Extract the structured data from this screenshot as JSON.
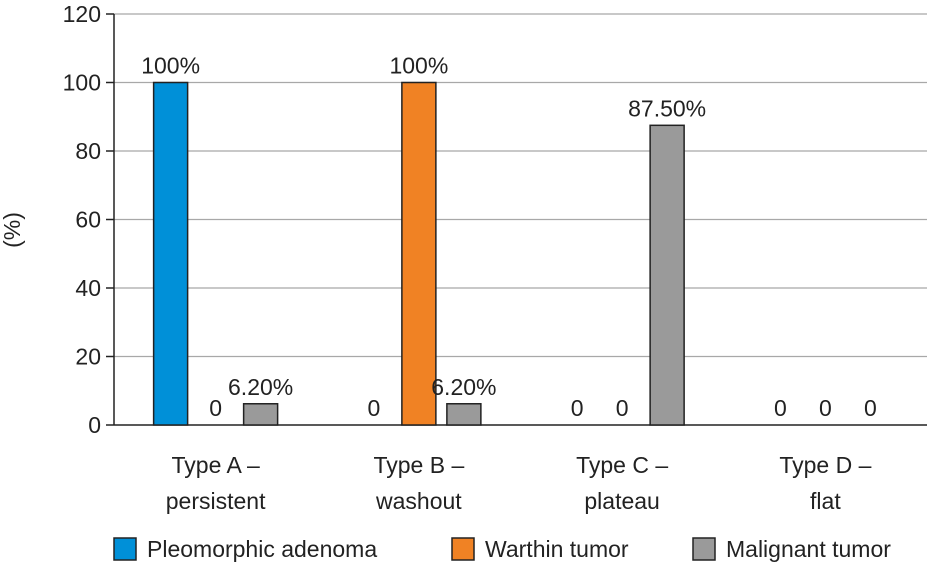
{
  "chart_data": {
    "type": "bar",
    "categories": [
      [
        "Type A –",
        "persistent"
      ],
      [
        "Type B –",
        "washout"
      ],
      [
        "Type C –",
        "plateau"
      ],
      [
        "Type D –",
        "flat"
      ]
    ],
    "series": [
      {
        "name": "Pleomorphic adenoma",
        "color": "#0090d8",
        "values": [
          100,
          0,
          0,
          0
        ],
        "labels": [
          "100%",
          "0",
          "0",
          "0"
        ]
      },
      {
        "name": "Warthin tumor",
        "color": "#f08224",
        "values": [
          0,
          100,
          0,
          0
        ],
        "labels": [
          "0",
          "100%",
          "0",
          "0"
        ]
      },
      {
        "name": "Malignant tumor",
        "color": "#9a9a9a",
        "values": [
          6.2,
          6.2,
          87.5,
          0
        ],
        "labels": [
          "6.20%",
          "6.20%",
          "87.50%",
          "0"
        ]
      }
    ],
    "ylabel": "(%)",
    "ylim": [
      0,
      120
    ],
    "yticks": [
      0,
      20,
      40,
      60,
      80,
      100,
      120
    ],
    "grid": true,
    "legend_position": "bottom"
  }
}
